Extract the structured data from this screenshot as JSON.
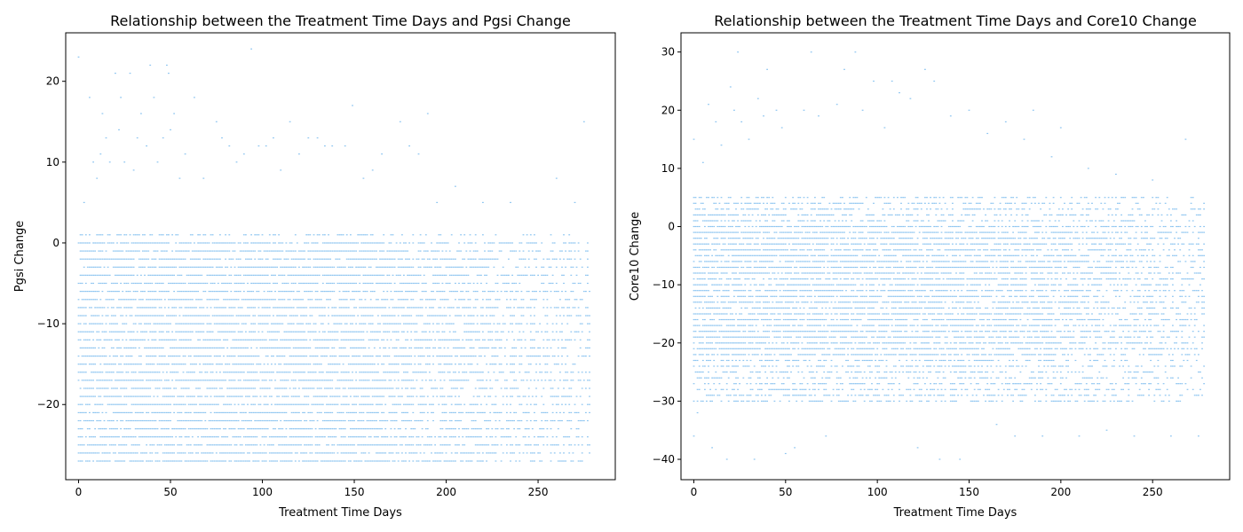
{
  "chart_data": [
    {
      "type": "scatter",
      "title": "Relationship between the Treatment Time Days and Pgsi Change",
      "xlabel": "Treatment Time Days",
      "ylabel": "Pgsi Change",
      "xlim": [
        -7,
        292
      ],
      "ylim": [
        -29.3,
        26.0
      ],
      "xticks": [
        0,
        50,
        100,
        150,
        200,
        250
      ],
      "yticks": [
        -20,
        -10,
        0,
        10,
        20
      ],
      "point_color": "#8cc4f0",
      "grid": false,
      "x_range": [
        0,
        278
      ],
      "y_levels": [
        -27,
        1
      ],
      "outliers": [
        [
          0,
          23
        ],
        [
          3,
          5
        ],
        [
          6,
          18
        ],
        [
          8,
          10
        ],
        [
          10,
          8
        ],
        [
          12,
          11
        ],
        [
          13,
          16
        ],
        [
          15,
          13
        ],
        [
          17,
          10
        ],
        [
          20,
          21
        ],
        [
          22,
          14
        ],
        [
          23,
          18
        ],
        [
          25,
          10
        ],
        [
          28,
          21
        ],
        [
          30,
          9
        ],
        [
          32,
          13
        ],
        [
          34,
          16
        ],
        [
          37,
          12
        ],
        [
          39,
          22
        ],
        [
          41,
          18
        ],
        [
          43,
          10
        ],
        [
          46,
          13
        ],
        [
          48,
          22
        ],
        [
          49,
          21
        ],
        [
          50,
          14
        ],
        [
          52,
          16
        ],
        [
          55,
          8
        ],
        [
          58,
          11
        ],
        [
          63,
          18
        ],
        [
          68,
          8
        ],
        [
          75,
          15
        ],
        [
          78,
          13
        ],
        [
          82,
          12
        ],
        [
          86,
          10
        ],
        [
          90,
          11
        ],
        [
          94,
          24
        ],
        [
          98,
          12
        ],
        [
          102,
          12
        ],
        [
          106,
          13
        ],
        [
          110,
          9
        ],
        [
          115,
          15
        ],
        [
          120,
          11
        ],
        [
          125,
          13
        ],
        [
          130,
          13
        ],
        [
          134,
          12
        ],
        [
          138,
          12
        ],
        [
          145,
          12
        ],
        [
          149,
          17
        ],
        [
          155,
          8
        ],
        [
          160,
          9
        ],
        [
          165,
          11
        ],
        [
          175,
          15
        ],
        [
          180,
          12
        ],
        [
          185,
          11
        ],
        [
          190,
          16
        ],
        [
          195,
          5
        ],
        [
          205,
          7
        ],
        [
          220,
          5
        ],
        [
          235,
          5
        ],
        [
          260,
          8
        ],
        [
          270,
          5
        ],
        [
          275,
          15
        ]
      ]
    },
    {
      "type": "scatter",
      "title": "Relationship between the Treatment Time Days and Core10 Change",
      "xlabel": "Treatment Time Days",
      "ylabel": "Core10 Change",
      "xlim": [
        -7,
        292
      ],
      "ylim": [
        -43.5,
        33.3
      ],
      "xticks": [
        0,
        50,
        100,
        150,
        200,
        250
      ],
      "yticks": [
        -40,
        -30,
        -20,
        -10,
        0,
        10,
        20,
        30
      ],
      "point_color": "#8cc4f0",
      "grid": false,
      "x_range": [
        0,
        278
      ],
      "y_levels": [
        -30,
        5
      ],
      "outliers": [
        [
          0,
          15
        ],
        [
          0,
          -36
        ],
        [
          2,
          -32
        ],
        [
          5,
          11
        ],
        [
          8,
          21
        ],
        [
          10,
          -38
        ],
        [
          12,
          18
        ],
        [
          15,
          14
        ],
        [
          18,
          -40
        ],
        [
          20,
          24
        ],
        [
          22,
          20
        ],
        [
          24,
          30
        ],
        [
          26,
          18
        ],
        [
          30,
          15
        ],
        [
          33,
          -40
        ],
        [
          35,
          22
        ],
        [
          38,
          19
        ],
        [
          40,
          27
        ],
        [
          45,
          20
        ],
        [
          48,
          17
        ],
        [
          50,
          -39
        ],
        [
          55,
          -38
        ],
        [
          60,
          20
        ],
        [
          64,
          30
        ],
        [
          68,
          19
        ],
        [
          72,
          -36
        ],
        [
          78,
          21
        ],
        [
          82,
          27
        ],
        [
          88,
          30
        ],
        [
          92,
          20
        ],
        [
          98,
          25
        ],
        [
          104,
          17
        ],
        [
          108,
          25
        ],
        [
          112,
          23
        ],
        [
          118,
          22
        ],
        [
          122,
          -38
        ],
        [
          126,
          27
        ],
        [
          131,
          25
        ],
        [
          134,
          -40
        ],
        [
          140,
          19
        ],
        [
          145,
          -40
        ],
        [
          150,
          20
        ],
        [
          160,
          16
        ],
        [
          165,
          -34
        ],
        [
          170,
          18
        ],
        [
          175,
          -36
        ],
        [
          180,
          15
        ],
        [
          185,
          20
        ],
        [
          190,
          -36
        ],
        [
          195,
          12
        ],
        [
          200,
          17
        ],
        [
          210,
          -36
        ],
        [
          215,
          10
        ],
        [
          225,
          -35
        ],
        [
          230,
          9
        ],
        [
          240,
          -36
        ],
        [
          250,
          8
        ],
        [
          260,
          -36
        ],
        [
          268,
          15
        ],
        [
          275,
          -36
        ]
      ]
    }
  ]
}
